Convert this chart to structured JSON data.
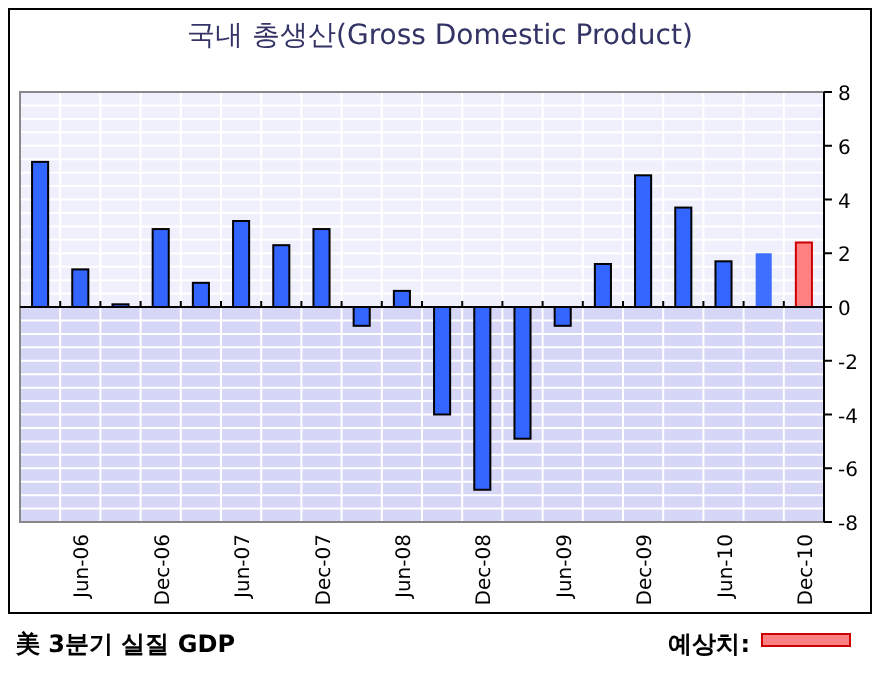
{
  "chart_data": {
    "type": "bar",
    "title": "국내 총생산(Gross Domestic Product)",
    "categories": [
      null,
      "Jun-06",
      null,
      "Dec-06",
      null,
      "Jun-07",
      null,
      "Dec-07",
      null,
      "Jun-08",
      null,
      "Dec-08",
      null,
      "Jun-09",
      null,
      "Dec-09",
      null,
      "Jun-10",
      null,
      "Dec-10"
    ],
    "series": [
      {
        "colors": [
          "#3366ff",
          "#3366ff",
          "#3366ff",
          "#3366ff",
          "#3366ff",
          "#3366ff",
          "#3366ff",
          "#3366ff",
          "#3366ff",
          "#3366ff",
          "#3366ff",
          "#3366ff",
          "#3366ff",
          "#3366ff",
          "#3366ff",
          "#3366ff",
          "#3366ff",
          "#3366ff",
          "#3f6fff",
          null
        ],
        "values": [
          5.4,
          1.4,
          0.1,
          2.9,
          0.9,
          3.2,
          2.3,
          2.9,
          -0.7,
          0.6,
          -4.0,
          -6.8,
          -4.9,
          -0.7,
          1.6,
          4.9,
          3.7,
          1.7,
          2.0,
          null
        ]
      },
      {
        "name": "예상치:",
        "color": "#ff8080",
        "values": [
          null,
          null,
          null,
          null,
          null,
          null,
          null,
          null,
          null,
          null,
          null,
          null,
          null,
          null,
          null,
          null,
          null,
          null,
          null,
          2.4
        ]
      }
    ],
    "ylim": [
      -8,
      8
    ],
    "yticks": [
      -8,
      -6,
      -4,
      -2,
      0,
      2,
      4,
      6,
      8
    ],
    "grid": true,
    "legend": "bottom right",
    "annotations": [
      "美 3분기 실질 GDP"
    ]
  }
}
